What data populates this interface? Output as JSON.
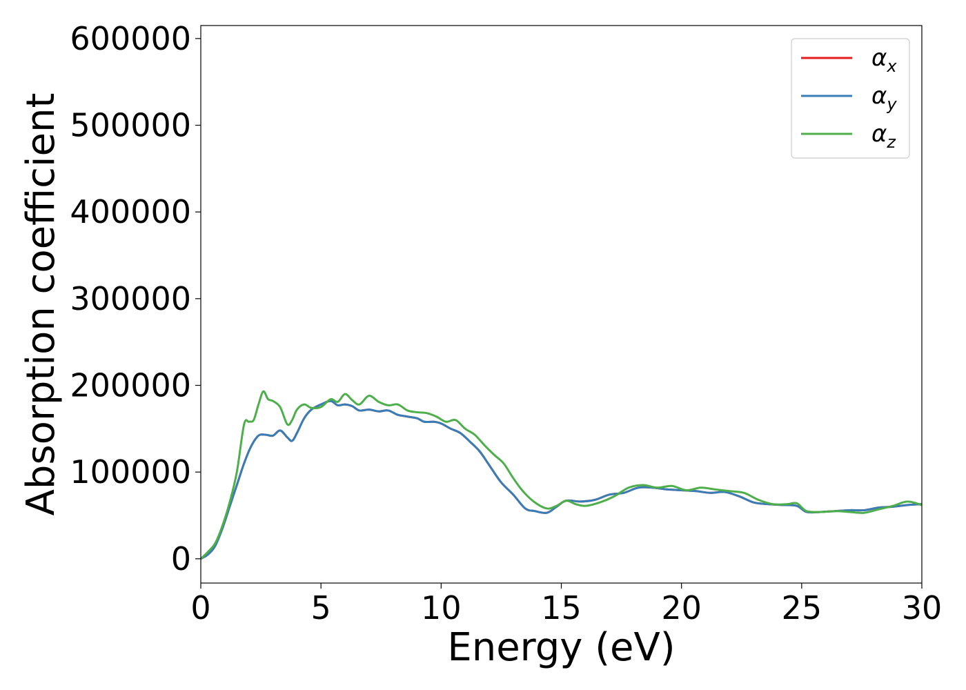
{
  "chart_data": {
    "type": "line",
    "title": "",
    "xlabel": "Energy (eV)",
    "ylabel": "Absorption coefficient",
    "xlim": [
      0,
      30
    ],
    "ylim": [
      -28000,
      615000
    ],
    "xticks": [
      0,
      5,
      10,
      15,
      20,
      25,
      30
    ],
    "yticks": [
      0,
      100000,
      200000,
      300000,
      400000,
      500000,
      600000
    ],
    "legend_position": "top-right",
    "grid": false,
    "series": [
      {
        "name": "α",
        "sub": "x",
        "color": "#e41a1c",
        "x": [
          0,
          0.3,
          0.6,
          0.9,
          1.2,
          1.5,
          1.8,
          2.1,
          2.4,
          2.7,
          3.0,
          3.3,
          3.6,
          3.8,
          4.0,
          4.3,
          4.6,
          5.0,
          5.4,
          5.7,
          6.0,
          6.3,
          6.6,
          7.0,
          7.4,
          7.8,
          8.2,
          8.6,
          9.0,
          9.3,
          9.7,
          10.0,
          10.4,
          10.8,
          11.2,
          11.6,
          12.0,
          12.5,
          13.0,
          13.5,
          13.9,
          14.4,
          14.8,
          15.2,
          15.8,
          16.4,
          17.0,
          17.6,
          18.2,
          18.8,
          19.4,
          20.0,
          20.6,
          21.2,
          21.8,
          22.4,
          23.0,
          23.6,
          24.2,
          24.8,
          25.2,
          25.8,
          26.4,
          27.0,
          27.6,
          28.2,
          28.8,
          29.4,
          30.0
        ],
        "values": [
          0,
          5000,
          15000,
          35000,
          60000,
          85000,
          110000,
          130000,
          142000,
          143000,
          142000,
          148000,
          140000,
          136000,
          145000,
          162000,
          172000,
          178000,
          182000,
          177000,
          178000,
          176000,
          171000,
          172000,
          170000,
          171000,
          166000,
          164000,
          162000,
          158000,
          158000,
          156000,
          150000,
          145000,
          135000,
          124000,
          108000,
          88000,
          74000,
          58000,
          55000,
          53000,
          60000,
          67000,
          66000,
          68000,
          74000,
          76000,
          82000,
          82000,
          80000,
          79000,
          78000,
          76000,
          77000,
          72000,
          65000,
          63000,
          62000,
          61000,
          54000,
          54000,
          55000,
          56000,
          56000,
          59000,
          60000,
          62000,
          63000
        ]
      },
      {
        "name": "α",
        "sub": "y",
        "color": "#377eb8",
        "x": [
          0,
          0.3,
          0.6,
          0.9,
          1.2,
          1.5,
          1.8,
          2.1,
          2.4,
          2.7,
          3.0,
          3.3,
          3.6,
          3.8,
          4.0,
          4.3,
          4.6,
          5.0,
          5.4,
          5.7,
          6.0,
          6.3,
          6.6,
          7.0,
          7.4,
          7.8,
          8.2,
          8.6,
          9.0,
          9.3,
          9.7,
          10.0,
          10.4,
          10.8,
          11.2,
          11.6,
          12.0,
          12.5,
          13.0,
          13.5,
          13.9,
          14.4,
          14.8,
          15.2,
          15.8,
          16.4,
          17.0,
          17.6,
          18.2,
          18.8,
          19.4,
          20.0,
          20.6,
          21.2,
          21.8,
          22.4,
          23.0,
          23.6,
          24.2,
          24.8,
          25.2,
          25.8,
          26.4,
          27.0,
          27.6,
          28.2,
          28.8,
          29.4,
          30.0
        ],
        "values": [
          0,
          5000,
          15000,
          35000,
          60000,
          85000,
          110000,
          130000,
          142000,
          143000,
          142000,
          148000,
          140000,
          136000,
          145000,
          162000,
          172000,
          178000,
          182000,
          177000,
          178000,
          176000,
          171000,
          172000,
          170000,
          171000,
          166000,
          164000,
          162000,
          158000,
          158000,
          156000,
          150000,
          145000,
          135000,
          124000,
          108000,
          88000,
          74000,
          58000,
          55000,
          53000,
          60000,
          67000,
          66000,
          68000,
          74000,
          76000,
          82000,
          82000,
          80000,
          79000,
          78000,
          76000,
          77000,
          72000,
          65000,
          63000,
          62000,
          61000,
          54000,
          54000,
          55000,
          56000,
          56000,
          59000,
          60000,
          62000,
          63000
        ]
      },
      {
        "name": "α",
        "sub": "z",
        "color": "#4daf4a",
        "x": [
          0,
          0.3,
          0.6,
          0.9,
          1.2,
          1.5,
          1.8,
          2.0,
          2.2,
          2.4,
          2.6,
          2.8,
          3.0,
          3.3,
          3.6,
          3.8,
          4.0,
          4.3,
          4.6,
          5.0,
          5.4,
          5.7,
          6.0,
          6.3,
          6.6,
          7.0,
          7.4,
          7.8,
          8.2,
          8.6,
          9.0,
          9.4,
          9.8,
          10.2,
          10.6,
          11.0,
          11.4,
          11.8,
          12.2,
          12.6,
          13.0,
          13.4,
          13.9,
          14.4,
          14.8,
          15.2,
          15.6,
          16.0,
          16.6,
          17.2,
          17.8,
          18.4,
          19.0,
          19.6,
          20.2,
          20.8,
          21.4,
          22.0,
          22.6,
          23.2,
          23.8,
          24.4,
          24.8,
          25.2,
          25.8,
          26.4,
          27.0,
          27.6,
          28.2,
          28.8,
          29.4,
          30.0
        ],
        "values": [
          0,
          8000,
          18000,
          38000,
          65000,
          100000,
          155000,
          158000,
          160000,
          178000,
          193000,
          184000,
          182000,
          175000,
          155000,
          160000,
          172000,
          178000,
          174000,
          175000,
          184000,
          181000,
          190000,
          183000,
          178000,
          188000,
          181000,
          177000,
          178000,
          171000,
          169000,
          168000,
          164000,
          158000,
          160000,
          150000,
          143000,
          131000,
          120000,
          110000,
          93000,
          78000,
          65000,
          58000,
          61000,
          67000,
          63000,
          61000,
          65000,
          72000,
          82000,
          85000,
          82000,
          84000,
          79000,
          82000,
          80000,
          78000,
          76000,
          68000,
          63000,
          63000,
          64000,
          55000,
          54000,
          55000,
          54000,
          53000,
          57000,
          61000,
          66000,
          62000
        ]
      }
    ]
  }
}
